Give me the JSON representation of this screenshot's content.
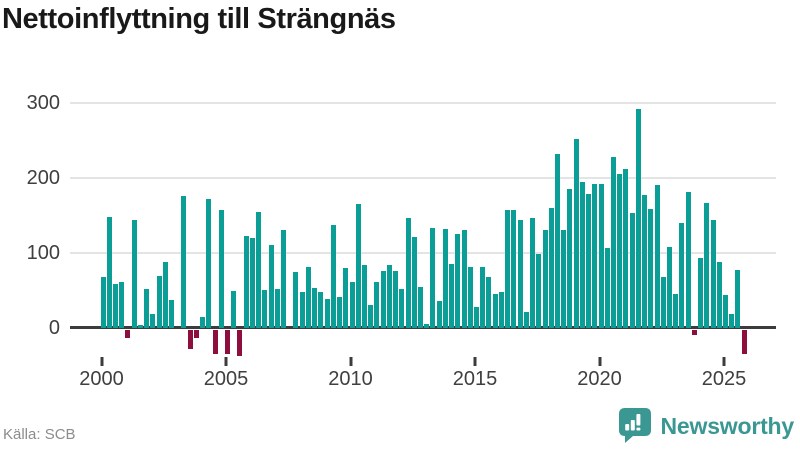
{
  "title": "Nettoinflyttning till Strängnäs",
  "source_note": "Källa: SCB",
  "branding": {
    "wordmark": "Newsworthy",
    "icon": "bar-chart-speech-bubble-icon"
  },
  "colors": {
    "positive": "#0b9e96",
    "negative": "#8e0f3e",
    "axis": "#3c3c3c",
    "grid": "#e4e4e4",
    "text": "#3f3f3f",
    "brand": "#3a9792",
    "title_text": "#191919",
    "source_text": "#8c8c8c"
  },
  "chart_data": {
    "type": "bar",
    "title": "Nettoinflyttning till Strängnäs",
    "xlabel": "",
    "ylabel": "",
    "frequency": "quarterly",
    "x_start": "2000-Q1",
    "x_end": "2025-Q4",
    "x_tick_labels": [
      "2000",
      "2005",
      "2010",
      "2015",
      "2020",
      "2025"
    ],
    "y_ticks": [
      0,
      100,
      200,
      300
    ],
    "ylim": [
      -40,
      310
    ],
    "grid": "horizontal",
    "legend": "none",
    "bar_color_rule": "teal when positive, dark red when negative",
    "series": [
      {
        "name": "Nettoinflyttning",
        "values": [
          67,
          147,
          58,
          61,
          -11,
          144,
          4,
          52,
          18,
          69,
          87,
          37,
          0,
          176,
          -25,
          -10,
          14,
          172,
          -32,
          157,
          -32,
          49,
          -34,
          122,
          120,
          154,
          50,
          110,
          51,
          130,
          0,
          74,
          47,
          81,
          53,
          48,
          38,
          137,
          41,
          79,
          61,
          165,
          84,
          30,
          61,
          75,
          83,
          75,
          52,
          146,
          121,
          54,
          5,
          133,
          36,
          132,
          85,
          125,
          130,
          81,
          27,
          81,
          67,
          45,
          48,
          157,
          157,
          144,
          21,
          146,
          98,
          130,
          159,
          232,
          130,
          185,
          252,
          194,
          178,
          192,
          191,
          106,
          228,
          205,
          212,
          153,
          292,
          177,
          158,
          190,
          68,
          107,
          45,
          140,
          181,
          -6,
          93,
          166,
          144,
          87,
          43,
          18,
          77,
          -32
        ]
      }
    ]
  }
}
